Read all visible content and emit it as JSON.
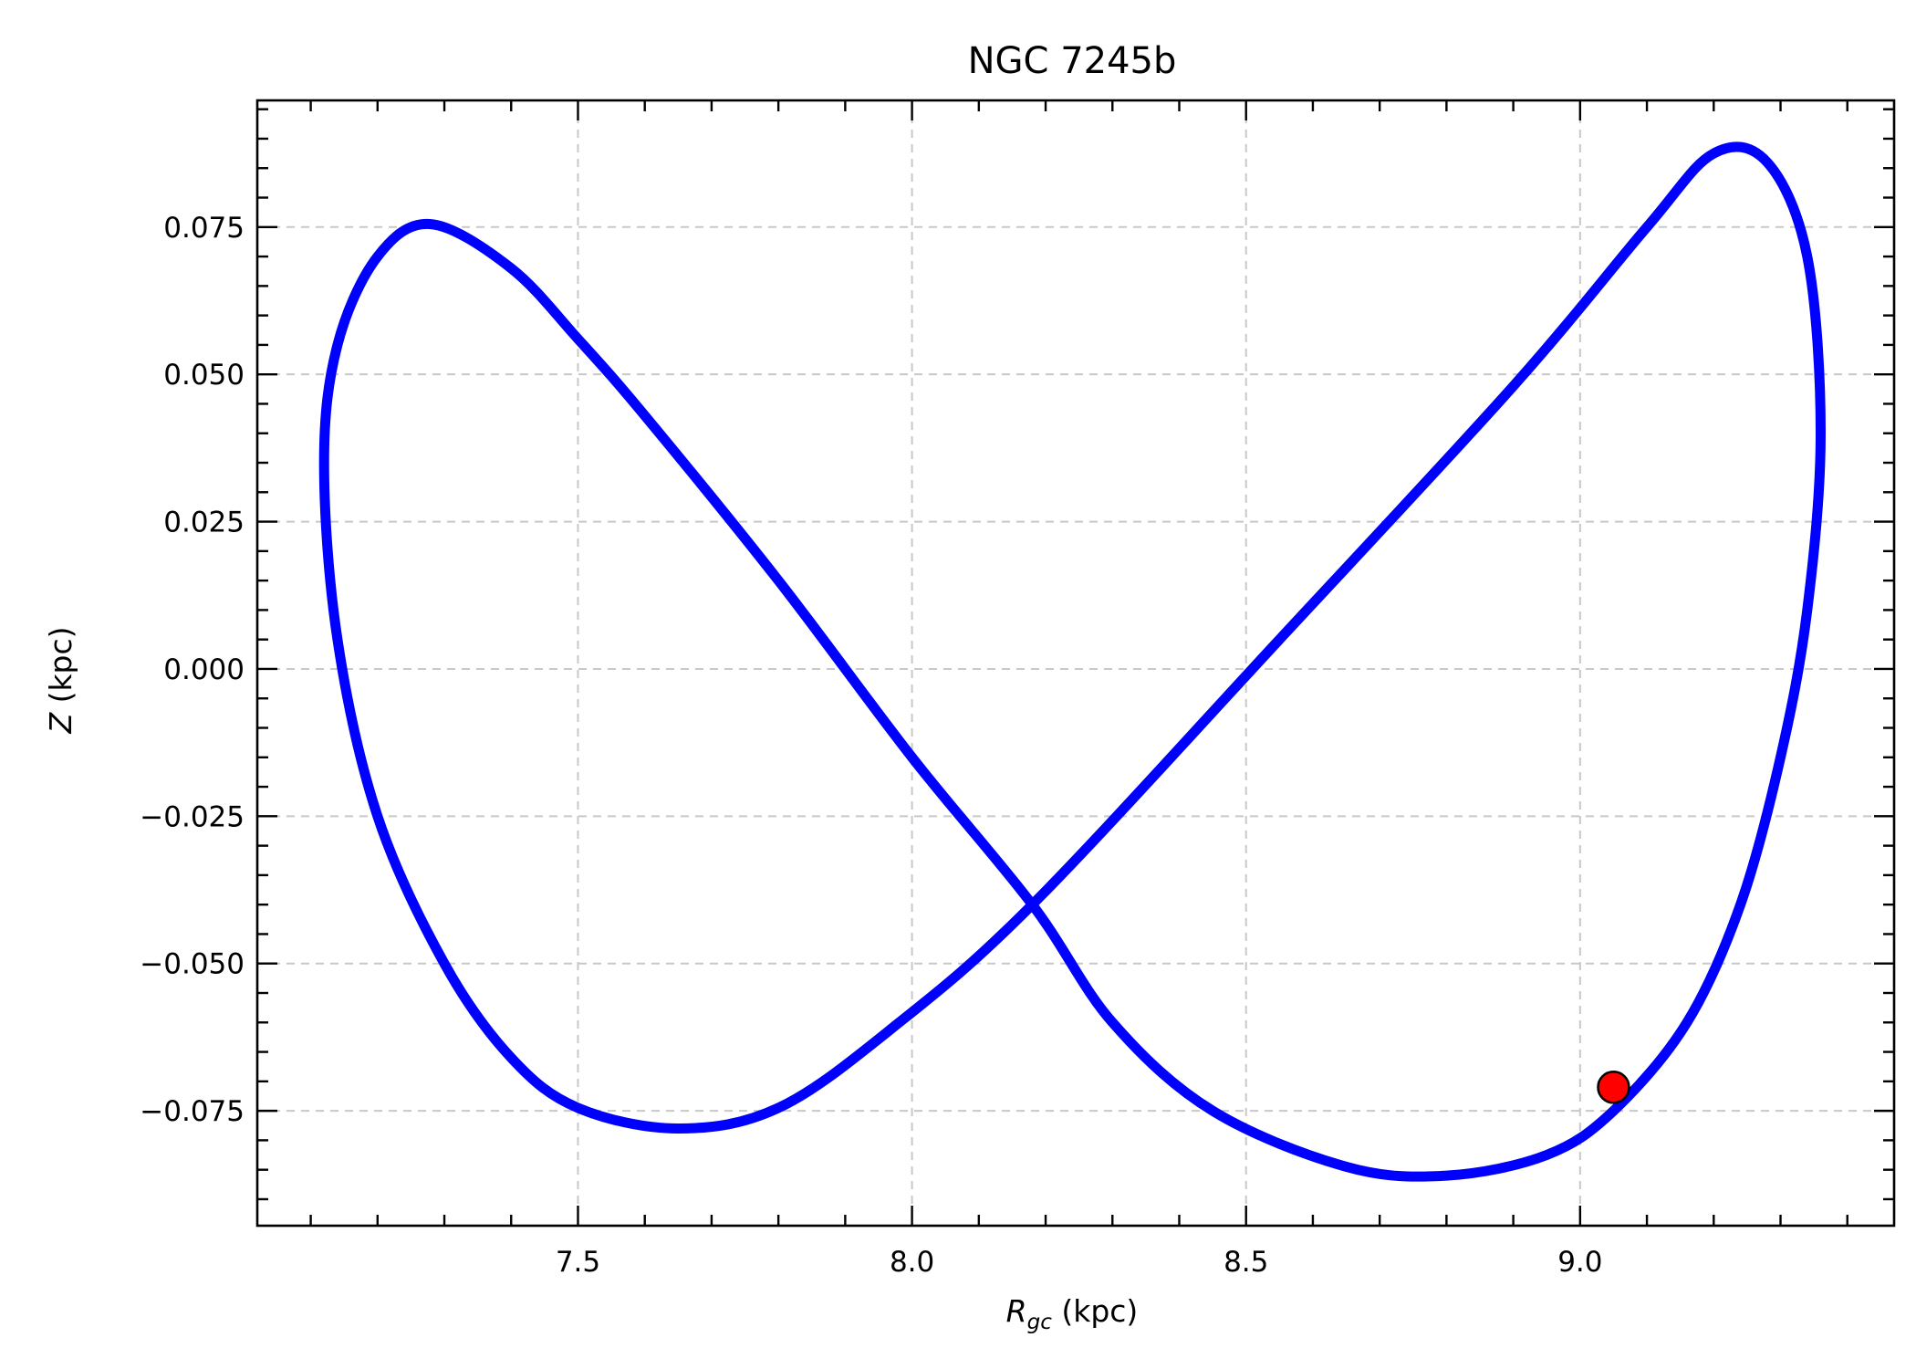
{
  "chart_data": {
    "type": "line",
    "title": "NGC 7245b",
    "xlabel_main": "R",
    "xlabel_sub": "gc",
    "xlabel_unit": " (kpc)",
    "ylabel_main": "Z",
    "ylabel_unit": " (kpc)",
    "xlim": [
      7.02,
      9.47
    ],
    "ylim": [
      -0.0945,
      0.0965
    ],
    "x_major_ticks": [
      7.5,
      8.0,
      8.5,
      9.0
    ],
    "x_tick_labels": [
      "7.5",
      "8.0",
      "8.5",
      "9.0"
    ],
    "x_minor_step": 0.1,
    "y_major_ticks": [
      -0.075,
      -0.05,
      -0.025,
      0.0,
      0.025,
      0.05,
      0.075
    ],
    "y_tick_labels": [
      "−0.075",
      "−0.050",
      "−0.025",
      "0.000",
      "0.025",
      "0.050",
      "0.075"
    ],
    "y_minor_step": 0.005,
    "grid": true,
    "orbit_color": "#0000ff",
    "marker_color": "#ff0000",
    "series": [
      {
        "x": [
          8.18,
          8.55,
          8.9,
          9.1,
          9.2,
          9.28,
          9.34,
          9.36,
          9.34,
          9.3,
          9.24,
          9.16,
          9.05,
          8.95,
          8.8,
          8.65,
          8.45,
          8.3,
          8.18,
          8.0,
          7.8,
          7.6,
          7.5,
          7.4,
          7.28,
          7.2,
          7.14,
          7.12,
          7.14,
          7.2,
          7.3,
          7.4,
          7.5,
          7.65,
          7.8,
          7.97,
          8.18
        ],
        "y": [
          -0.04,
          0.005,
          0.048,
          0.075,
          0.0875,
          0.086,
          0.07,
          0.04,
          0.01,
          -0.015,
          -0.04,
          -0.06,
          -0.075,
          -0.0825,
          -0.086,
          -0.0845,
          -0.075,
          -0.06,
          -0.04,
          -0.015,
          0.015,
          0.043,
          0.056,
          0.068,
          0.0755,
          0.07,
          0.055,
          0.035,
          0.005,
          -0.025,
          -0.05,
          -0.066,
          -0.0745,
          -0.078,
          -0.0745,
          -0.061,
          -0.04
        ]
      }
    ],
    "marker": {
      "x": 9.05,
      "y": -0.071
    }
  }
}
